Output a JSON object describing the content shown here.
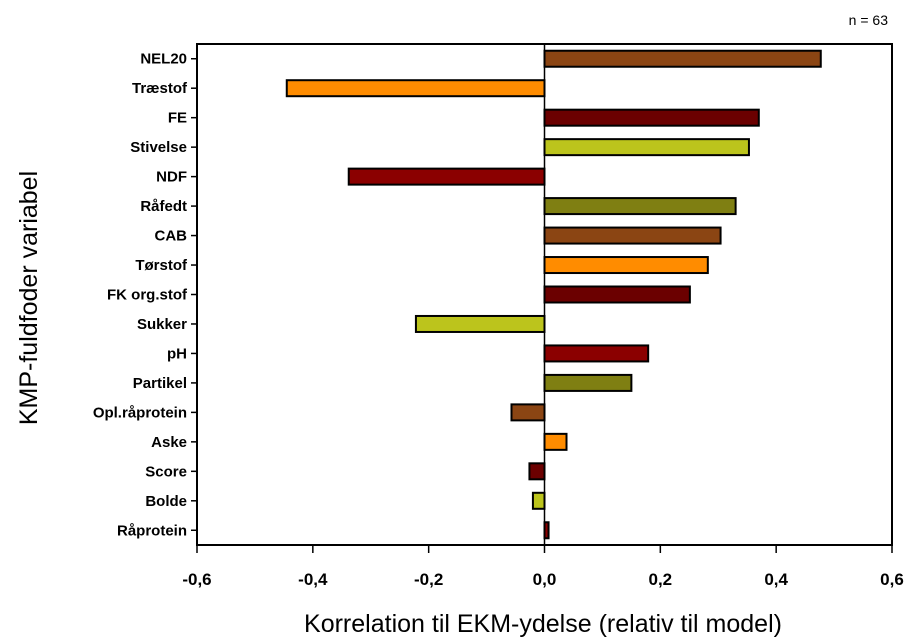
{
  "chart_data": {
    "type": "bar",
    "orientation": "horizontal",
    "annotation": "n = 63",
    "xlabel": "Korrelation til EKM-ydelse (relativ til model)",
    "ylabel": "KMP-fuldfoder variabel",
    "xlim": [
      -0.6,
      0.6
    ],
    "xticks": [
      -0.6,
      -0.4,
      -0.2,
      0.0,
      0.2,
      0.4,
      0.6
    ],
    "xtick_labels": [
      "-0,6",
      "-0,4",
      "-0,2",
      "0,0",
      "0,2",
      "0,4",
      "0,6"
    ],
    "grid": false,
    "categories": [
      "NEL20",
      "Træstof",
      "FE",
      "Stivelse",
      "NDF",
      "Råfedt",
      "CAB",
      "Tørstof",
      "FK org.stof",
      "Sukker",
      "pH",
      "Partikel",
      "Opl.råprotein",
      "Aske",
      "Score",
      "Bolde",
      "Råprotein"
    ],
    "values": [
      0.477,
      -0.445,
      0.37,
      0.353,
      -0.338,
      0.33,
      0.304,
      0.282,
      0.251,
      -0.222,
      0.179,
      0.15,
      -0.057,
      0.038,
      -0.026,
      -0.02,
      0.007
    ],
    "colors": [
      "#8B4513",
      "#FF8C00",
      "#6B0000",
      "#BCC41C",
      "#8B0000",
      "#7F7F12",
      "#8B4513",
      "#FF8C00",
      "#6B0000",
      "#BCC41C",
      "#8B0000",
      "#7F7F12",
      "#8B4513",
      "#FF8C00",
      "#6B0000",
      "#BCC41C",
      "#8B0000"
    ]
  }
}
